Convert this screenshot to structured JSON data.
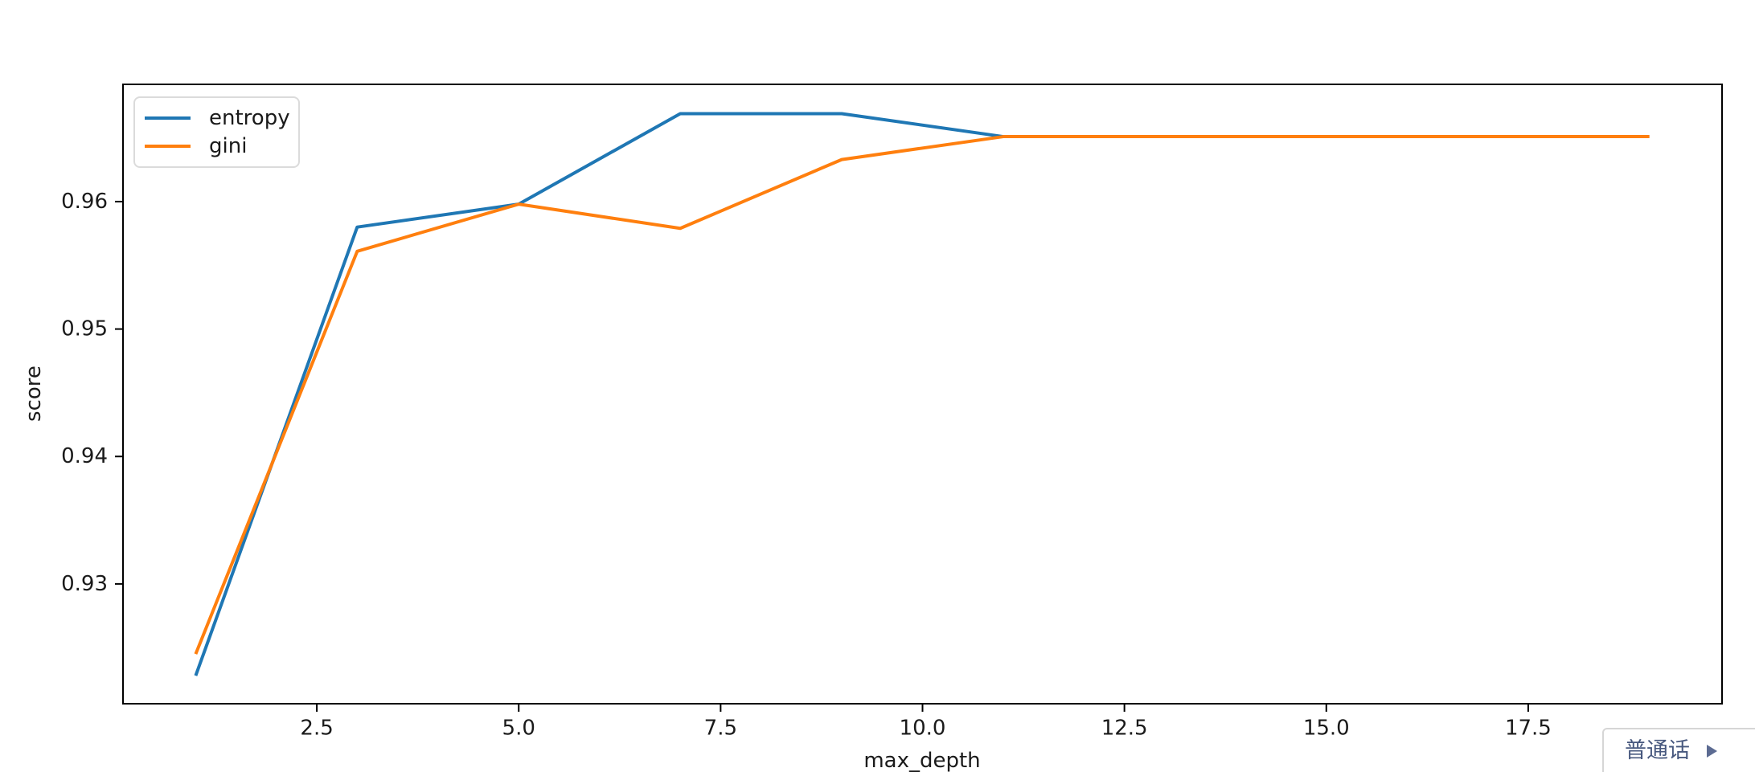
{
  "language_popup": {
    "label": "普通话",
    "icon": "right-triangle-icon",
    "text_color": "#47587e",
    "border_color": "#d6d6d6"
  },
  "chart_data": {
    "type": "line",
    "title": "",
    "xlabel": "max_depth",
    "ylabel": "score",
    "x": [
      1,
      3,
      5,
      7,
      9,
      11,
      13,
      15,
      17,
      19
    ],
    "series": [
      {
        "name": "entropy",
        "color": "#1f77b4",
        "values": [
          0.9228,
          0.958,
          0.9598,
          0.9669,
          0.9669,
          0.9651,
          0.9651,
          0.9651,
          0.9651,
          0.9651
        ]
      },
      {
        "name": "gini",
        "color": "#ff7f0e",
        "values": [
          0.9245,
          0.9561,
          0.9598,
          0.9579,
          0.9633,
          0.9651,
          0.9651,
          0.9651,
          0.9651,
          0.9651
        ]
      }
    ],
    "xlim": [
      0.1,
      19.9
    ],
    "ylim": [
      0.9206,
      0.9692
    ],
    "x_ticks": [
      2.5,
      5.0,
      7.5,
      10.0,
      12.5,
      15.0,
      17.5
    ],
    "x_tick_labels": [
      "2.5",
      "5.0",
      "7.5",
      "10.0",
      "12.5",
      "15.0",
      "17.5"
    ],
    "y_ticks": [
      0.93,
      0.94,
      0.95,
      0.96
    ],
    "y_tick_labels": [
      "0.93",
      "0.94",
      "0.95",
      "0.96"
    ],
    "grid": false,
    "legend_position": "upper left",
    "axis_color": "#000000",
    "tick_label_color": "#1a1a1a"
  }
}
